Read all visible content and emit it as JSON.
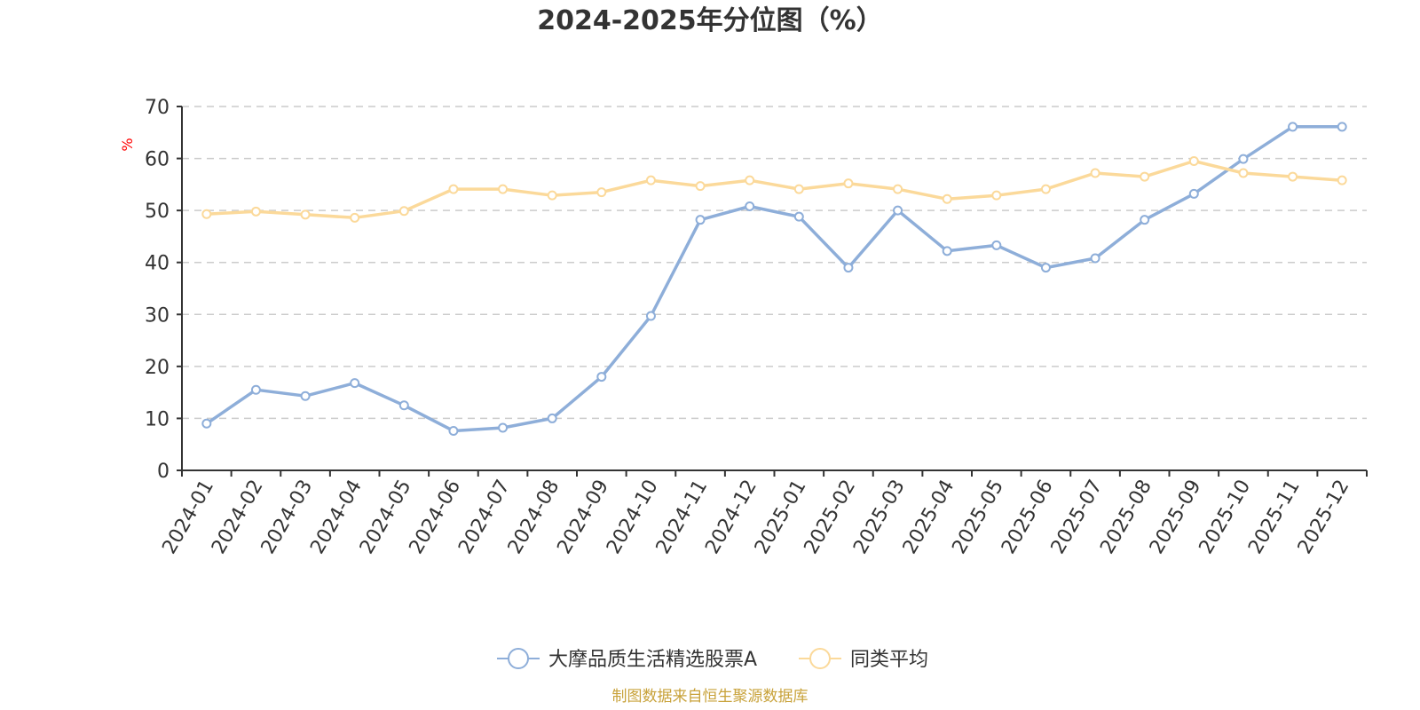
{
  "colors": {
    "series_1": "#8eaed9",
    "series_2": "#fbd99a",
    "unit": "#ff0000",
    "source": "#c8a23a"
  },
  "chart_data": {
    "type": "line",
    "title": "2024-2025年分位图（%）",
    "ylabel": "%",
    "xlabel": "",
    "ylim": [
      0,
      70
    ],
    "yticks": [
      0,
      10,
      20,
      30,
      40,
      50,
      60,
      70
    ],
    "grid": true,
    "legend_position": "bottom",
    "categories": [
      "2024-01",
      "2024-02",
      "2024-03",
      "2024-04",
      "2024-05",
      "2024-06",
      "2024-07",
      "2024-08",
      "2024-09",
      "2024-10",
      "2024-11",
      "2024-12",
      "2025-01",
      "2025-02",
      "2025-03",
      "2025-04",
      "2025-05",
      "2025-06",
      "2025-07",
      "2025-08",
      "2025-09",
      "2025-10",
      "2025-11",
      "2025-12"
    ],
    "series": [
      {
        "name": "大摩品质生活精选股票A",
        "color_key": "series_1",
        "values": [
          9.0,
          15.5,
          14.3,
          16.8,
          12.5,
          7.6,
          8.2,
          10.0,
          18.0,
          29.7,
          48.2,
          50.8,
          48.8,
          39.0,
          50.0,
          42.2,
          43.3,
          39.0,
          40.8,
          48.2,
          53.2,
          59.9,
          66.1,
          66.1
        ]
      },
      {
        "name": "同类平均",
        "color_key": "series_2",
        "values": [
          49.3,
          49.8,
          49.2,
          48.6,
          49.9,
          54.1,
          54.1,
          52.9,
          53.5,
          55.8,
          54.7,
          55.8,
          54.1,
          55.2,
          54.1,
          52.2,
          52.9,
          54.1,
          57.2,
          56.5,
          59.5,
          57.2,
          56.5,
          55.8
        ]
      }
    ]
  },
  "footer": {
    "source": "制图数据来自恒生聚源数据库"
  }
}
